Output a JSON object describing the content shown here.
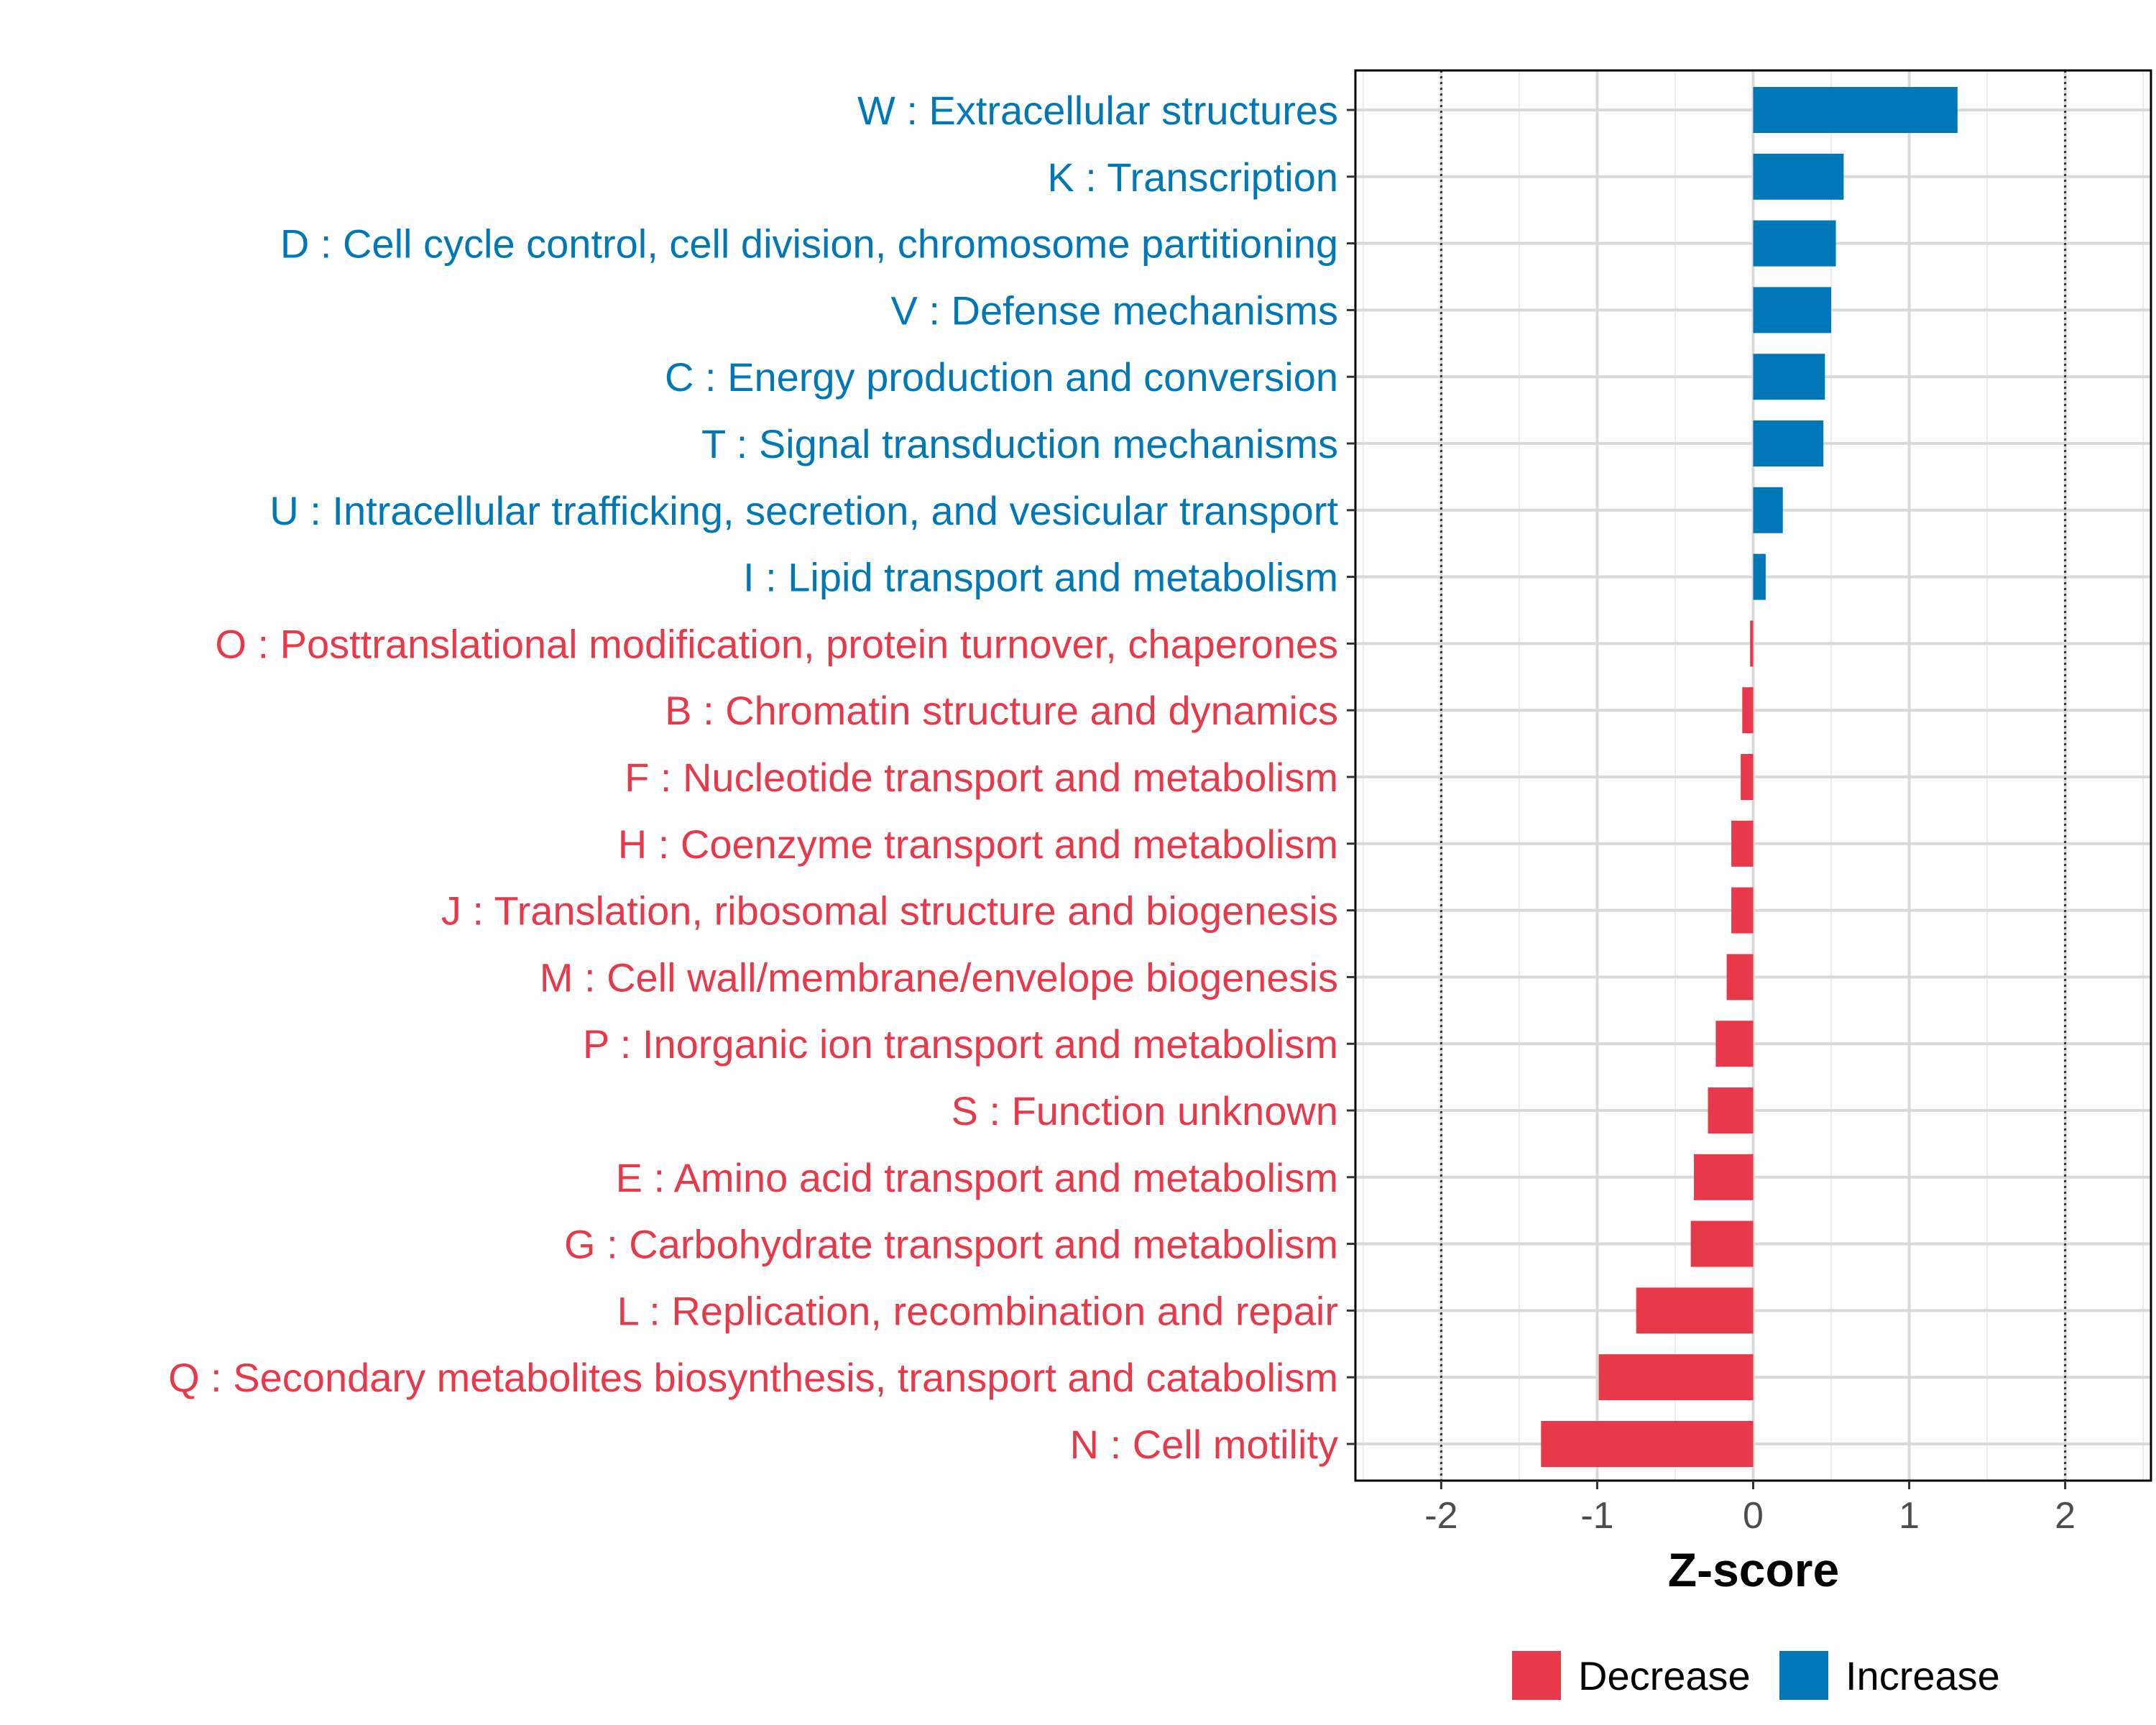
{
  "chart_data": {
    "type": "bar",
    "orientation": "horizontal",
    "title": "",
    "xlabel": "Z-score",
    "ylabel": "",
    "xlim": [
      -2.55,
      2.55
    ],
    "xticks": [
      -2,
      -1,
      0,
      1,
      2
    ],
    "reference_lines": [
      -2,
      2
    ],
    "grid": true,
    "legend_position": "bottom",
    "categories": [
      "W : Extracellular structures",
      "K : Transcription",
      "D : Cell cycle control, cell division, chromosome partitioning",
      "V : Defense mechanisms",
      "C : Energy production and conversion",
      "T : Signal transduction mechanisms",
      "U : Intracellular trafficking, secretion, and vesicular transport",
      "I : Lipid transport and metabolism",
      "O : Posttranslational modification, protein turnover, chaperones",
      "B : Chromatin structure and dynamics",
      "F : Nucleotide transport and metabolism",
      "H : Coenzyme transport and metabolism",
      "J : Translation, ribosomal structure and biogenesis",
      "M : Cell wall/membrane/envelope biogenesis",
      "P : Inorganic ion transport and metabolism",
      "S : Function unknown",
      "E : Amino acid transport and metabolism",
      "G : Carbohydrate transport and metabolism",
      "L : Replication, recombination and repair",
      "Q : Secondary metabolites biosynthesis, transport and catabolism",
      "N : Cell motility"
    ],
    "values": [
      1.31,
      0.58,
      0.53,
      0.5,
      0.46,
      0.45,
      0.19,
      0.08,
      -0.02,
      -0.07,
      -0.08,
      -0.14,
      -0.14,
      -0.17,
      -0.24,
      -0.29,
      -0.38,
      -0.4,
      -0.75,
      -0.99,
      -1.36
    ],
    "groups": [
      "Increase",
      "Increase",
      "Increase",
      "Increase",
      "Increase",
      "Increase",
      "Increase",
      "Increase",
      "Decrease",
      "Decrease",
      "Decrease",
      "Decrease",
      "Decrease",
      "Decrease",
      "Decrease",
      "Decrease",
      "Decrease",
      "Decrease",
      "Decrease",
      "Decrease",
      "Decrease"
    ],
    "legend": [
      {
        "name": "Decrease",
        "color": "#E8394A"
      },
      {
        "name": "Increase",
        "color": "#0077B6"
      }
    ]
  }
}
